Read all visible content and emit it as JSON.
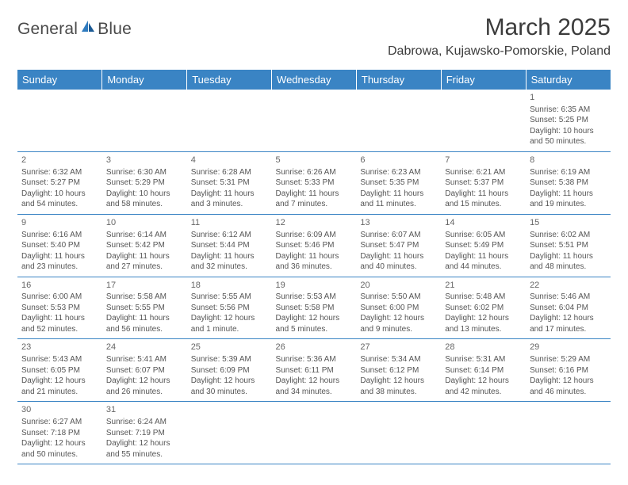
{
  "logo": {
    "brand_a": "General",
    "brand_b": "Blue"
  },
  "header": {
    "month_title": "March 2025",
    "location": "Dabrowa, Kujawsko-Pomorskie, Poland"
  },
  "colors": {
    "header_bg": "#3a84c4",
    "header_text": "#ffffff",
    "cell_border": "#3a84c4",
    "body_text": "#555555",
    "title_text": "#3b3b3b",
    "logo_blue": "#2f7bbf"
  },
  "weekdays": [
    "Sunday",
    "Monday",
    "Tuesday",
    "Wednesday",
    "Thursday",
    "Friday",
    "Saturday"
  ],
  "weeks": [
    [
      null,
      null,
      null,
      null,
      null,
      null,
      {
        "d": "1",
        "sr": "Sunrise: 6:35 AM",
        "ss": "Sunset: 5:25 PM",
        "dl1": "Daylight: 10 hours",
        "dl2": "and 50 minutes."
      }
    ],
    [
      {
        "d": "2",
        "sr": "Sunrise: 6:32 AM",
        "ss": "Sunset: 5:27 PM",
        "dl1": "Daylight: 10 hours",
        "dl2": "and 54 minutes."
      },
      {
        "d": "3",
        "sr": "Sunrise: 6:30 AM",
        "ss": "Sunset: 5:29 PM",
        "dl1": "Daylight: 10 hours",
        "dl2": "and 58 minutes."
      },
      {
        "d": "4",
        "sr": "Sunrise: 6:28 AM",
        "ss": "Sunset: 5:31 PM",
        "dl1": "Daylight: 11 hours",
        "dl2": "and 3 minutes."
      },
      {
        "d": "5",
        "sr": "Sunrise: 6:26 AM",
        "ss": "Sunset: 5:33 PM",
        "dl1": "Daylight: 11 hours",
        "dl2": "and 7 minutes."
      },
      {
        "d": "6",
        "sr": "Sunrise: 6:23 AM",
        "ss": "Sunset: 5:35 PM",
        "dl1": "Daylight: 11 hours",
        "dl2": "and 11 minutes."
      },
      {
        "d": "7",
        "sr": "Sunrise: 6:21 AM",
        "ss": "Sunset: 5:37 PM",
        "dl1": "Daylight: 11 hours",
        "dl2": "and 15 minutes."
      },
      {
        "d": "8",
        "sr": "Sunrise: 6:19 AM",
        "ss": "Sunset: 5:38 PM",
        "dl1": "Daylight: 11 hours",
        "dl2": "and 19 minutes."
      }
    ],
    [
      {
        "d": "9",
        "sr": "Sunrise: 6:16 AM",
        "ss": "Sunset: 5:40 PM",
        "dl1": "Daylight: 11 hours",
        "dl2": "and 23 minutes."
      },
      {
        "d": "10",
        "sr": "Sunrise: 6:14 AM",
        "ss": "Sunset: 5:42 PM",
        "dl1": "Daylight: 11 hours",
        "dl2": "and 27 minutes."
      },
      {
        "d": "11",
        "sr": "Sunrise: 6:12 AM",
        "ss": "Sunset: 5:44 PM",
        "dl1": "Daylight: 11 hours",
        "dl2": "and 32 minutes."
      },
      {
        "d": "12",
        "sr": "Sunrise: 6:09 AM",
        "ss": "Sunset: 5:46 PM",
        "dl1": "Daylight: 11 hours",
        "dl2": "and 36 minutes."
      },
      {
        "d": "13",
        "sr": "Sunrise: 6:07 AM",
        "ss": "Sunset: 5:47 PM",
        "dl1": "Daylight: 11 hours",
        "dl2": "and 40 minutes."
      },
      {
        "d": "14",
        "sr": "Sunrise: 6:05 AM",
        "ss": "Sunset: 5:49 PM",
        "dl1": "Daylight: 11 hours",
        "dl2": "and 44 minutes."
      },
      {
        "d": "15",
        "sr": "Sunrise: 6:02 AM",
        "ss": "Sunset: 5:51 PM",
        "dl1": "Daylight: 11 hours",
        "dl2": "and 48 minutes."
      }
    ],
    [
      {
        "d": "16",
        "sr": "Sunrise: 6:00 AM",
        "ss": "Sunset: 5:53 PM",
        "dl1": "Daylight: 11 hours",
        "dl2": "and 52 minutes."
      },
      {
        "d": "17",
        "sr": "Sunrise: 5:58 AM",
        "ss": "Sunset: 5:55 PM",
        "dl1": "Daylight: 11 hours",
        "dl2": "and 56 minutes."
      },
      {
        "d": "18",
        "sr": "Sunrise: 5:55 AM",
        "ss": "Sunset: 5:56 PM",
        "dl1": "Daylight: 12 hours",
        "dl2": "and 1 minute."
      },
      {
        "d": "19",
        "sr": "Sunrise: 5:53 AM",
        "ss": "Sunset: 5:58 PM",
        "dl1": "Daylight: 12 hours",
        "dl2": "and 5 minutes."
      },
      {
        "d": "20",
        "sr": "Sunrise: 5:50 AM",
        "ss": "Sunset: 6:00 PM",
        "dl1": "Daylight: 12 hours",
        "dl2": "and 9 minutes."
      },
      {
        "d": "21",
        "sr": "Sunrise: 5:48 AM",
        "ss": "Sunset: 6:02 PM",
        "dl1": "Daylight: 12 hours",
        "dl2": "and 13 minutes."
      },
      {
        "d": "22",
        "sr": "Sunrise: 5:46 AM",
        "ss": "Sunset: 6:04 PM",
        "dl1": "Daylight: 12 hours",
        "dl2": "and 17 minutes."
      }
    ],
    [
      {
        "d": "23",
        "sr": "Sunrise: 5:43 AM",
        "ss": "Sunset: 6:05 PM",
        "dl1": "Daylight: 12 hours",
        "dl2": "and 21 minutes."
      },
      {
        "d": "24",
        "sr": "Sunrise: 5:41 AM",
        "ss": "Sunset: 6:07 PM",
        "dl1": "Daylight: 12 hours",
        "dl2": "and 26 minutes."
      },
      {
        "d": "25",
        "sr": "Sunrise: 5:39 AM",
        "ss": "Sunset: 6:09 PM",
        "dl1": "Daylight: 12 hours",
        "dl2": "and 30 minutes."
      },
      {
        "d": "26",
        "sr": "Sunrise: 5:36 AM",
        "ss": "Sunset: 6:11 PM",
        "dl1": "Daylight: 12 hours",
        "dl2": "and 34 minutes."
      },
      {
        "d": "27",
        "sr": "Sunrise: 5:34 AM",
        "ss": "Sunset: 6:12 PM",
        "dl1": "Daylight: 12 hours",
        "dl2": "and 38 minutes."
      },
      {
        "d": "28",
        "sr": "Sunrise: 5:31 AM",
        "ss": "Sunset: 6:14 PM",
        "dl1": "Daylight: 12 hours",
        "dl2": "and 42 minutes."
      },
      {
        "d": "29",
        "sr": "Sunrise: 5:29 AM",
        "ss": "Sunset: 6:16 PM",
        "dl1": "Daylight: 12 hours",
        "dl2": "and 46 minutes."
      }
    ],
    [
      {
        "d": "30",
        "sr": "Sunrise: 6:27 AM",
        "ss": "Sunset: 7:18 PM",
        "dl1": "Daylight: 12 hours",
        "dl2": "and 50 minutes."
      },
      {
        "d": "31",
        "sr": "Sunrise: 6:24 AM",
        "ss": "Sunset: 7:19 PM",
        "dl1": "Daylight: 12 hours",
        "dl2": "and 55 minutes."
      },
      null,
      null,
      null,
      null,
      null
    ]
  ]
}
